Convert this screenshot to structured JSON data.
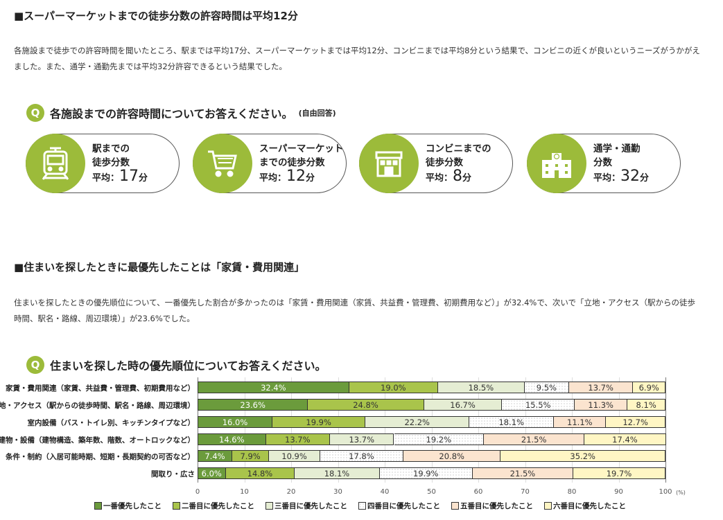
{
  "section1": {
    "heading": "■スーパーマーケットまでの徒歩分数の許容時間は平均12分",
    "paragraph": "各施設まで徒歩での許容時間を聞いたところ、駅までは平均17分、スーパーマーケットまでは平均12分、コンビニまでは平均8分という結果で、コンビニの近くが良いというニーズがうかがえました。また、通学・通勤先までは平均32分許容できるという結果でした。",
    "q_badge": "Q",
    "question": "各施設までの許容時間についてお答えください。",
    "question_note": "(自由回答)",
    "cards": [
      {
        "icon": "train-icon",
        "line1": "駅までの",
        "line2": "徒歩分数",
        "avg_label": "平均：",
        "value": "17",
        "unit": "分"
      },
      {
        "icon": "shopping-cart-icon",
        "line1": "スーパーマーケット",
        "line2": "までの徒歩分数",
        "avg_label": "平均：",
        "value": "12",
        "unit": "分"
      },
      {
        "icon": "convenience-store-icon",
        "line1": "コンビニまでの",
        "line2": "徒歩分数",
        "avg_label": "平均：",
        "value": "8",
        "unit": "分"
      },
      {
        "icon": "school-building-icon",
        "line1": "通学・通勤",
        "line2": "分数",
        "avg_label": "平均：",
        "value": "32",
        "unit": "分"
      }
    ]
  },
  "section2": {
    "heading": "■住まいを探したときに最優先したことは「家賃・費用関連」",
    "paragraph": "住まいを探したときの優先順位について、一番優先した割合が多かったのは「家賃・費用関連（家賃、共益費・管理費、初期費用など）」が32.4%で、次いで「立地・アクセス（駅からの徒歩時間、駅名・路線、周辺環境）」が23.6%でした。",
    "q_badge": "Q",
    "question": "住まいを探した時の優先順位についてお答えください。"
  },
  "chart_data": {
    "type": "bar",
    "orientation": "horizontal",
    "stacked": true,
    "categories": [
      "家賃・費用関連（家賃、共益費・管理費、初期費用など）",
      "立地・アクセス（駅からの徒歩時間、駅名・路線、周辺環境）",
      "室内設備（バス・トイレ別、キッチンタイプなど）",
      "建物・設備（建物構造、築年数、階数、オートロックなど）",
      "条件・制約（入居可能時期、短期・長期契約の可否など）",
      "間取り・広さ"
    ],
    "series": [
      {
        "name": "一番優先したこと",
        "color": "#6b9b3c",
        "values": [
          32.4,
          23.6,
          16.0,
          14.6,
          7.4,
          6.0
        ]
      },
      {
        "name": "二番目に優先したこと",
        "color": "#a9c44b",
        "values": [
          19.0,
          24.8,
          19.9,
          13.7,
          7.9,
          14.8
        ]
      },
      {
        "name": "三番目に優先したこと",
        "color": "#e5edd3",
        "values": [
          18.5,
          16.7,
          22.2,
          13.7,
          10.9,
          18.1
        ]
      },
      {
        "name": "四番目に優先したこと",
        "color": "#ffffff",
        "pattern": "dots",
        "values": [
          9.5,
          15.5,
          18.1,
          19.2,
          17.8,
          19.9
        ]
      },
      {
        "name": "五番目に優先したこと",
        "color": "#fbe4cf",
        "values": [
          13.7,
          11.3,
          11.1,
          21.5,
          20.8,
          21.5
        ]
      },
      {
        "name": "六番目に優先したこと",
        "color": "#fff6c4",
        "values": [
          6.9,
          8.1,
          12.7,
          17.4,
          35.2,
          19.7
        ]
      }
    ],
    "xlim": [
      0,
      100
    ],
    "xticks": [
      "0",
      "10",
      "20",
      "30",
      "40",
      "50",
      "60",
      "70",
      "80",
      "90",
      "100"
    ],
    "xunit": "(%)",
    "grid": true,
    "legend": "bottom"
  }
}
